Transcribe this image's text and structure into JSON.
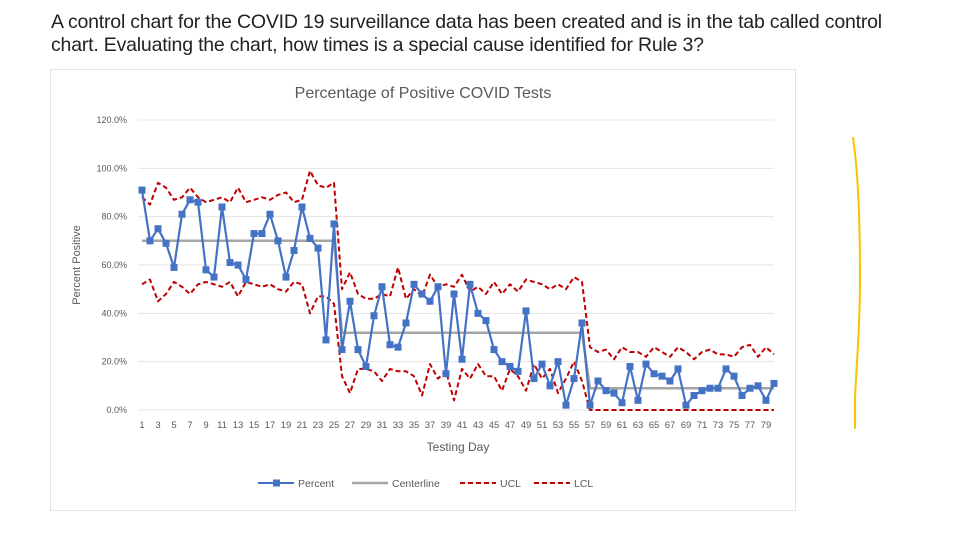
{
  "question": {
    "line1": "A control chart for the COVID 19 surveillance data has been created and is in the tab called control",
    "line2": "chart. Evaluating the chart, how times is a special cause identified for Rule 3?"
  },
  "colors": {
    "percent": "#4472c4",
    "centerline": "#a5a5a5",
    "ucl": "#c00000",
    "lcl": "#c00000",
    "gridline": "#e5e5e5",
    "annotation": "#ffc000"
  },
  "chart_data": {
    "type": "line",
    "title": "Percentage of Positive COVID Tests",
    "xlabel": "Testing Day",
    "ylabel": "Percent Positive",
    "ylim": [
      0,
      120
    ],
    "yticks": [
      "0.0%",
      "20.0%",
      "40.0%",
      "60.0%",
      "80.0%",
      "100.0%",
      "120.0%"
    ],
    "ytick_values": [
      0,
      20,
      40,
      60,
      80,
      100,
      120
    ],
    "xticks": [
      "1",
      "3",
      "5",
      "7",
      "9",
      "11",
      "13",
      "15",
      "17",
      "19",
      "21",
      "23",
      "25",
      "27",
      "29",
      "31",
      "33",
      "35",
      "37",
      "39",
      "41",
      "43",
      "45",
      "47",
      "49",
      "51",
      "53",
      "55",
      "57",
      "59",
      "61",
      "63",
      "65",
      "67",
      "69",
      "71",
      "73",
      "75",
      "77",
      "79"
    ],
    "grid": true,
    "legend_position": "bottom",
    "x": [
      1,
      2,
      3,
      4,
      5,
      6,
      7,
      8,
      9,
      10,
      11,
      12,
      13,
      14,
      15,
      16,
      17,
      18,
      19,
      20,
      21,
      22,
      23,
      24,
      25,
      26,
      27,
      28,
      29,
      30,
      31,
      32,
      33,
      34,
      35,
      36,
      37,
      38,
      39,
      40,
      41,
      42,
      43,
      44,
      45,
      46,
      47,
      48,
      49,
      50,
      51,
      52,
      53,
      54,
      55,
      56,
      57,
      58,
      59,
      60,
      61,
      62,
      63,
      64,
      65,
      66,
      67,
      68,
      69,
      70,
      71,
      72,
      73,
      74,
      75,
      76,
      77,
      78,
      79,
      80
    ],
    "series": [
      {
        "name": "Percent",
        "style": "line-marker",
        "values": [
          91,
          70,
          75,
          69,
          59,
          81,
          87,
          86,
          58,
          55,
          84,
          61,
          60,
          54,
          73,
          73,
          81,
          70,
          55,
          66,
          84,
          71,
          67,
          29,
          77,
          25,
          45,
          25,
          18,
          39,
          51,
          27,
          26,
          36,
          52,
          48,
          45,
          51,
          15,
          48,
          21,
          52,
          40,
          37,
          25,
          20,
          18,
          16,
          41,
          13,
          19,
          10,
          20,
          2,
          13,
          36,
          2,
          12,
          8,
          7,
          3,
          18,
          4,
          19,
          15,
          14,
          12,
          17,
          2,
          6,
          8,
          9,
          9,
          17,
          14,
          6,
          9,
          10,
          4,
          11
        ]
      },
      {
        "name": "Centerline",
        "style": "solid",
        "values": [
          70,
          70,
          70,
          70,
          70,
          70,
          70,
          70,
          70,
          70,
          70,
          70,
          70,
          70,
          70,
          70,
          70,
          70,
          70,
          70,
          70,
          70,
          70,
          70,
          70,
          32,
          32,
          32,
          32,
          32,
          32,
          32,
          32,
          32,
          32,
          32,
          32,
          32,
          32,
          32,
          32,
          32,
          32,
          32,
          32,
          32,
          32,
          32,
          32,
          32,
          32,
          32,
          32,
          32,
          32,
          32,
          9,
          9,
          9,
          9,
          9,
          9,
          9,
          9,
          9,
          9,
          9,
          9,
          9,
          9,
          9,
          9,
          9,
          9,
          9,
          9,
          9,
          9,
          9,
          9
        ]
      },
      {
        "name": "UCL",
        "style": "dashed",
        "values": [
          88,
          85,
          94,
          92,
          87,
          88,
          92,
          88,
          86,
          87,
          88,
          86,
          92,
          86,
          87,
          88,
          87,
          89,
          90,
          86,
          87,
          99,
          93,
          92,
          94,
          50,
          57,
          48,
          46,
          46,
          48,
          47,
          59,
          46,
          50,
          47,
          56,
          51,
          52,
          51,
          56,
          49,
          51,
          48,
          53,
          48,
          52,
          49,
          54,
          53,
          52,
          50,
          52,
          50,
          55,
          53,
          26,
          24,
          25,
          21,
          26,
          24,
          24,
          22,
          26,
          24,
          22,
          26,
          24,
          21,
          24,
          25,
          23,
          23,
          22,
          26,
          27,
          22,
          26,
          23
        ]
      },
      {
        "name": "LCL",
        "style": "dashed",
        "values": [
          52,
          54,
          45,
          48,
          53,
          51,
          48,
          52,
          53,
          52,
          51,
          53,
          47,
          53,
          52,
          51,
          52,
          50,
          49,
          53,
          52,
          40,
          47,
          47,
          44,
          14,
          7,
          17,
          17,
          16,
          12,
          17,
          16,
          16,
          14,
          6,
          19,
          13,
          16,
          4,
          17,
          13,
          19,
          14,
          14,
          8,
          17,
          14,
          8,
          19,
          13,
          17,
          7,
          13,
          20,
          12,
          0,
          0,
          0,
          0,
          0,
          0,
          0,
          0,
          0,
          0,
          0,
          0,
          0,
          0,
          0,
          0,
          0,
          0,
          0,
          0,
          0,
          0,
          0,
          0
        ]
      }
    ]
  },
  "legend": [
    {
      "label": "Percent",
      "key": "percent"
    },
    {
      "label": "Centerline",
      "key": "centerline"
    },
    {
      "label": "UCL",
      "key": "ucl"
    },
    {
      "label": "LCL",
      "key": "lcl"
    }
  ]
}
